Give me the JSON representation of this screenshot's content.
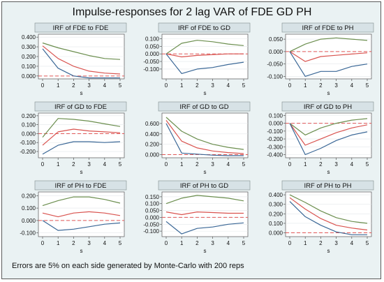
{
  "title": "Impulse-responses for 2 lag VAR of FDE GD PH",
  "footnote": "Errors are 5% on each side generated by Monte-Carlo with 200 reps",
  "colors": {
    "upper": "#6b8e4e",
    "lower": "#3a6796",
    "irf": "#d9534f",
    "zero": "#e05656",
    "panel_header": "#d7e2e6"
  },
  "chart_data": [
    {
      "type": "line",
      "title": "IRF of FDE to FDE",
      "xlabel": "s",
      "x": [
        0,
        1,
        2,
        3,
        4,
        5
      ],
      "xticks": [
        "0",
        "1",
        "2",
        "3",
        "4",
        "5"
      ],
      "ylim": [
        -0.03,
        0.43
      ],
      "yticks": [
        0,
        0.1,
        0.2,
        0.3,
        0.4
      ],
      "ytick_labels": [
        "0.000",
        "0.100",
        "0.200",
        "0.300",
        "0.400"
      ],
      "series": [
        {
          "role": "upper",
          "values": [
            0.34,
            0.29,
            0.25,
            0.21,
            0.18,
            0.17
          ]
        },
        {
          "role": "irf",
          "values": [
            0.31,
            0.18,
            0.1,
            0.05,
            0.03,
            0.02
          ]
        },
        {
          "role": "lower",
          "values": [
            0.28,
            0.08,
            0.0,
            -0.02,
            -0.02,
            -0.02
          ]
        }
      ]
    },
    {
      "type": "line",
      "title": "IRF of FDE to GD",
      "xlabel": "s",
      "x": [
        0,
        1,
        2,
        3,
        4,
        5
      ],
      "xticks": [
        "0",
        "1",
        "2",
        "3",
        "4",
        "5"
      ],
      "ylim": [
        -0.165,
        0.13
      ],
      "yticks": [
        -0.1,
        -0.05,
        0,
        0.05,
        0.1
      ],
      "ytick_labels": [
        "-0.100",
        "-0.050",
        "0.000",
        "0.050",
        "0.100"
      ],
      "series": [
        {
          "role": "upper",
          "values": [
            0.0,
            0.07,
            0.09,
            0.08,
            0.065,
            0.055
          ]
        },
        {
          "role": "irf",
          "values": [
            0.0,
            -0.02,
            -0.01,
            -0.005,
            0.0,
            0.0
          ]
        },
        {
          "role": "lower",
          "values": [
            0.0,
            -0.13,
            -0.1,
            -0.09,
            -0.07,
            -0.055
          ]
        }
      ]
    },
    {
      "type": "line",
      "title": "IRF of FDE to PH",
      "xlabel": "s",
      "x": [
        0,
        1,
        2,
        3,
        4,
        5
      ],
      "xticks": [
        "0",
        "1",
        "2",
        "3",
        "4",
        "5"
      ],
      "ylim": [
        -0.11,
        0.07
      ],
      "yticks": [
        -0.1,
        -0.05,
        0,
        0.05
      ],
      "ytick_labels": [
        "-0.100",
        "-0.050",
        "0.000",
        "0.050"
      ],
      "series": [
        {
          "role": "upper",
          "values": [
            0.0,
            0.03,
            0.05,
            0.055,
            0.05,
            0.045
          ]
        },
        {
          "role": "irf",
          "values": [
            0.0,
            -0.04,
            -0.02,
            -0.015,
            -0.01,
            -0.005
          ]
        },
        {
          "role": "lower",
          "values": [
            0.0,
            -0.1,
            -0.08,
            -0.08,
            -0.06,
            -0.05
          ]
        }
      ]
    },
    {
      "type": "line",
      "title": "IRF of GD to FDE",
      "xlabel": "s",
      "x": [
        0,
        1,
        2,
        3,
        4,
        5
      ],
      "xticks": [
        "0",
        "1",
        "2",
        "3",
        "4",
        "5"
      ],
      "ylim": [
        -0.27,
        0.23
      ],
      "yticks": [
        -0.2,
        -0.1,
        0,
        0.1,
        0.2
      ],
      "ytick_labels": [
        "-0.200",
        "-0.100",
        "0.000",
        "0.100",
        "0.200"
      ],
      "series": [
        {
          "role": "upper",
          "values": [
            -0.04,
            0.17,
            0.16,
            0.14,
            0.11,
            0.08
          ]
        },
        {
          "role": "irf",
          "values": [
            -0.13,
            0.02,
            0.05,
            0.03,
            0.02,
            0.01
          ]
        },
        {
          "role": "lower",
          "values": [
            -0.23,
            -0.13,
            -0.09,
            -0.09,
            -0.1,
            -0.09
          ]
        }
      ]
    },
    {
      "type": "line",
      "title": "IRF of GD to GD",
      "xlabel": "s",
      "x": [
        0,
        1,
        2,
        3,
        4,
        5
      ],
      "xticks": [
        "0",
        "1",
        "2",
        "3",
        "4",
        "5"
      ],
      "ylim": [
        -0.06,
        0.8
      ],
      "yticks": [
        0,
        0.2,
        0.4,
        0.6
      ],
      "ytick_labels": [
        "0.000",
        "0.200",
        "0.400",
        "0.600"
      ],
      "series": [
        {
          "role": "upper",
          "values": [
            0.72,
            0.45,
            0.3,
            0.2,
            0.14,
            0.1
          ]
        },
        {
          "role": "irf",
          "values": [
            0.66,
            0.26,
            0.13,
            0.07,
            0.04,
            0.02
          ]
        },
        {
          "role": "lower",
          "values": [
            0.6,
            0.03,
            0.01,
            -0.01,
            -0.02,
            -0.02
          ]
        }
      ]
    },
    {
      "type": "line",
      "title": "IRF of GD to PH",
      "xlabel": "s",
      "x": [
        0,
        1,
        2,
        3,
        4,
        5
      ],
      "xticks": [
        "0",
        "1",
        "2",
        "3",
        "4",
        "5"
      ],
      "ylim": [
        -0.44,
        0.13
      ],
      "yticks": [
        -0.4,
        -0.3,
        -0.2,
        -0.1,
        0,
        0.1
      ],
      "ytick_labels": [
        "-0.400",
        "-0.300",
        "-0.200",
        "-0.100",
        "0.000",
        "0.100"
      ],
      "series": [
        {
          "role": "upper",
          "values": [
            0.0,
            -0.15,
            -0.06,
            0.0,
            0.04,
            0.06
          ]
        },
        {
          "role": "irf",
          "values": [
            0.0,
            -0.28,
            -0.2,
            -0.12,
            -0.06,
            -0.02
          ]
        },
        {
          "role": "lower",
          "values": [
            0.0,
            -0.4,
            -0.32,
            -0.22,
            -0.15,
            -0.11
          ]
        }
      ]
    },
    {
      "type": "line",
      "title": "IRF of PH to FDE",
      "xlabel": "s",
      "x": [
        0,
        1,
        2,
        3,
        4,
        5
      ],
      "xticks": [
        "0",
        "1",
        "2",
        "3",
        "4",
        "5"
      ],
      "ylim": [
        -0.13,
        0.23
      ],
      "yticks": [
        -0.1,
        0,
        0.1,
        0.2
      ],
      "ytick_labels": [
        "-0.100",
        "0.000",
        "0.100",
        "0.200"
      ],
      "series": [
        {
          "role": "upper",
          "values": [
            0.12,
            0.16,
            0.19,
            0.19,
            0.17,
            0.14
          ]
        },
        {
          "role": "irf",
          "values": [
            0.06,
            0.03,
            0.06,
            0.07,
            0.06,
            0.04
          ]
        },
        {
          "role": "lower",
          "values": [
            0.0,
            -0.08,
            -0.07,
            -0.05,
            -0.03,
            -0.02
          ]
        }
      ]
    },
    {
      "type": "line",
      "title": "IRF of PH to GD",
      "xlabel": "s",
      "x": [
        0,
        1,
        2,
        3,
        4,
        5
      ],
      "xticks": [
        "0",
        "1",
        "2",
        "3",
        "4",
        "5"
      ],
      "ylim": [
        -0.14,
        0.185
      ],
      "yticks": [
        -0.1,
        -0.05,
        0,
        0.05,
        0.1,
        0.15
      ],
      "ytick_labels": [
        "-0.100",
        "-0.050",
        "0.000",
        "0.050",
        "0.100",
        "0.150"
      ],
      "series": [
        {
          "role": "upper",
          "values": [
            0.1,
            0.14,
            0.16,
            0.15,
            0.14,
            0.12
          ]
        },
        {
          "role": "irf",
          "values": [
            0.04,
            0.02,
            0.04,
            0.035,
            0.03,
            0.03
          ]
        },
        {
          "role": "lower",
          "values": [
            -0.03,
            -0.12,
            -0.08,
            -0.07,
            -0.05,
            -0.04
          ]
        }
      ]
    },
    {
      "type": "line",
      "title": "IRF of PH to PH",
      "xlabel": "s",
      "x": [
        0,
        1,
        2,
        3,
        4,
        5
      ],
      "xticks": [
        "0",
        "1",
        "2",
        "3",
        "4",
        "5"
      ],
      "ylim": [
        -0.04,
        0.43
      ],
      "yticks": [
        0,
        0.1,
        0.2,
        0.3,
        0.4
      ],
      "ytick_labels": [
        "0.000",
        "0.100",
        "0.200",
        "0.300",
        "0.400"
      ],
      "series": [
        {
          "role": "upper",
          "values": [
            0.4,
            0.32,
            0.23,
            0.16,
            0.12,
            0.1
          ]
        },
        {
          "role": "irf",
          "values": [
            0.37,
            0.25,
            0.15,
            0.08,
            0.05,
            0.03
          ]
        },
        {
          "role": "lower",
          "values": [
            0.33,
            0.17,
            0.08,
            0.01,
            -0.02,
            -0.02
          ]
        }
      ]
    }
  ]
}
